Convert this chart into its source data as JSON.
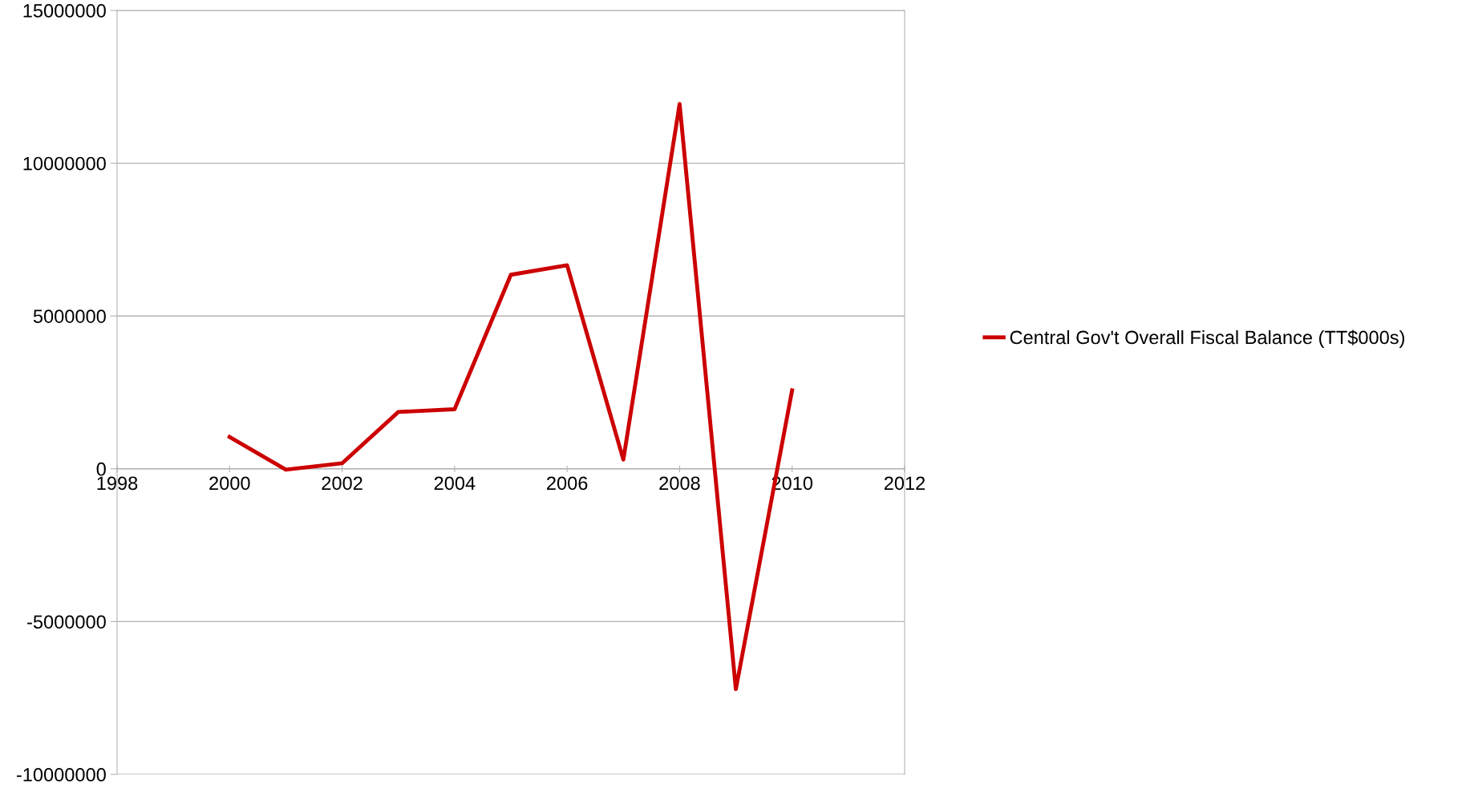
{
  "chart_data": {
    "type": "line",
    "x": [
      2000,
      2001,
      2002,
      2003,
      2004,
      2005,
      2006,
      2007,
      2008,
      2009,
      2010
    ],
    "series": [
      {
        "name": "Central Gov't Overall Fiscal Balance (TT$000s)",
        "color": "#cc0000",
        "values": [
          1040000,
          -30000,
          180000,
          1860000,
          1950000,
          6350000,
          6660000,
          300000,
          11940000,
          -7210000,
          2570000
        ]
      }
    ],
    "xlim": [
      1998,
      2012
    ],
    "xticks": [
      1998,
      2000,
      2002,
      2004,
      2006,
      2008,
      2010,
      2012
    ],
    "ylim": [
      -10000000,
      15000000
    ],
    "yticks": [
      -10000000,
      -5000000,
      0,
      5000000,
      10000000,
      15000000
    ],
    "grid": "y",
    "legend": "right",
    "marker": "none",
    "line_style": "solid"
  }
}
